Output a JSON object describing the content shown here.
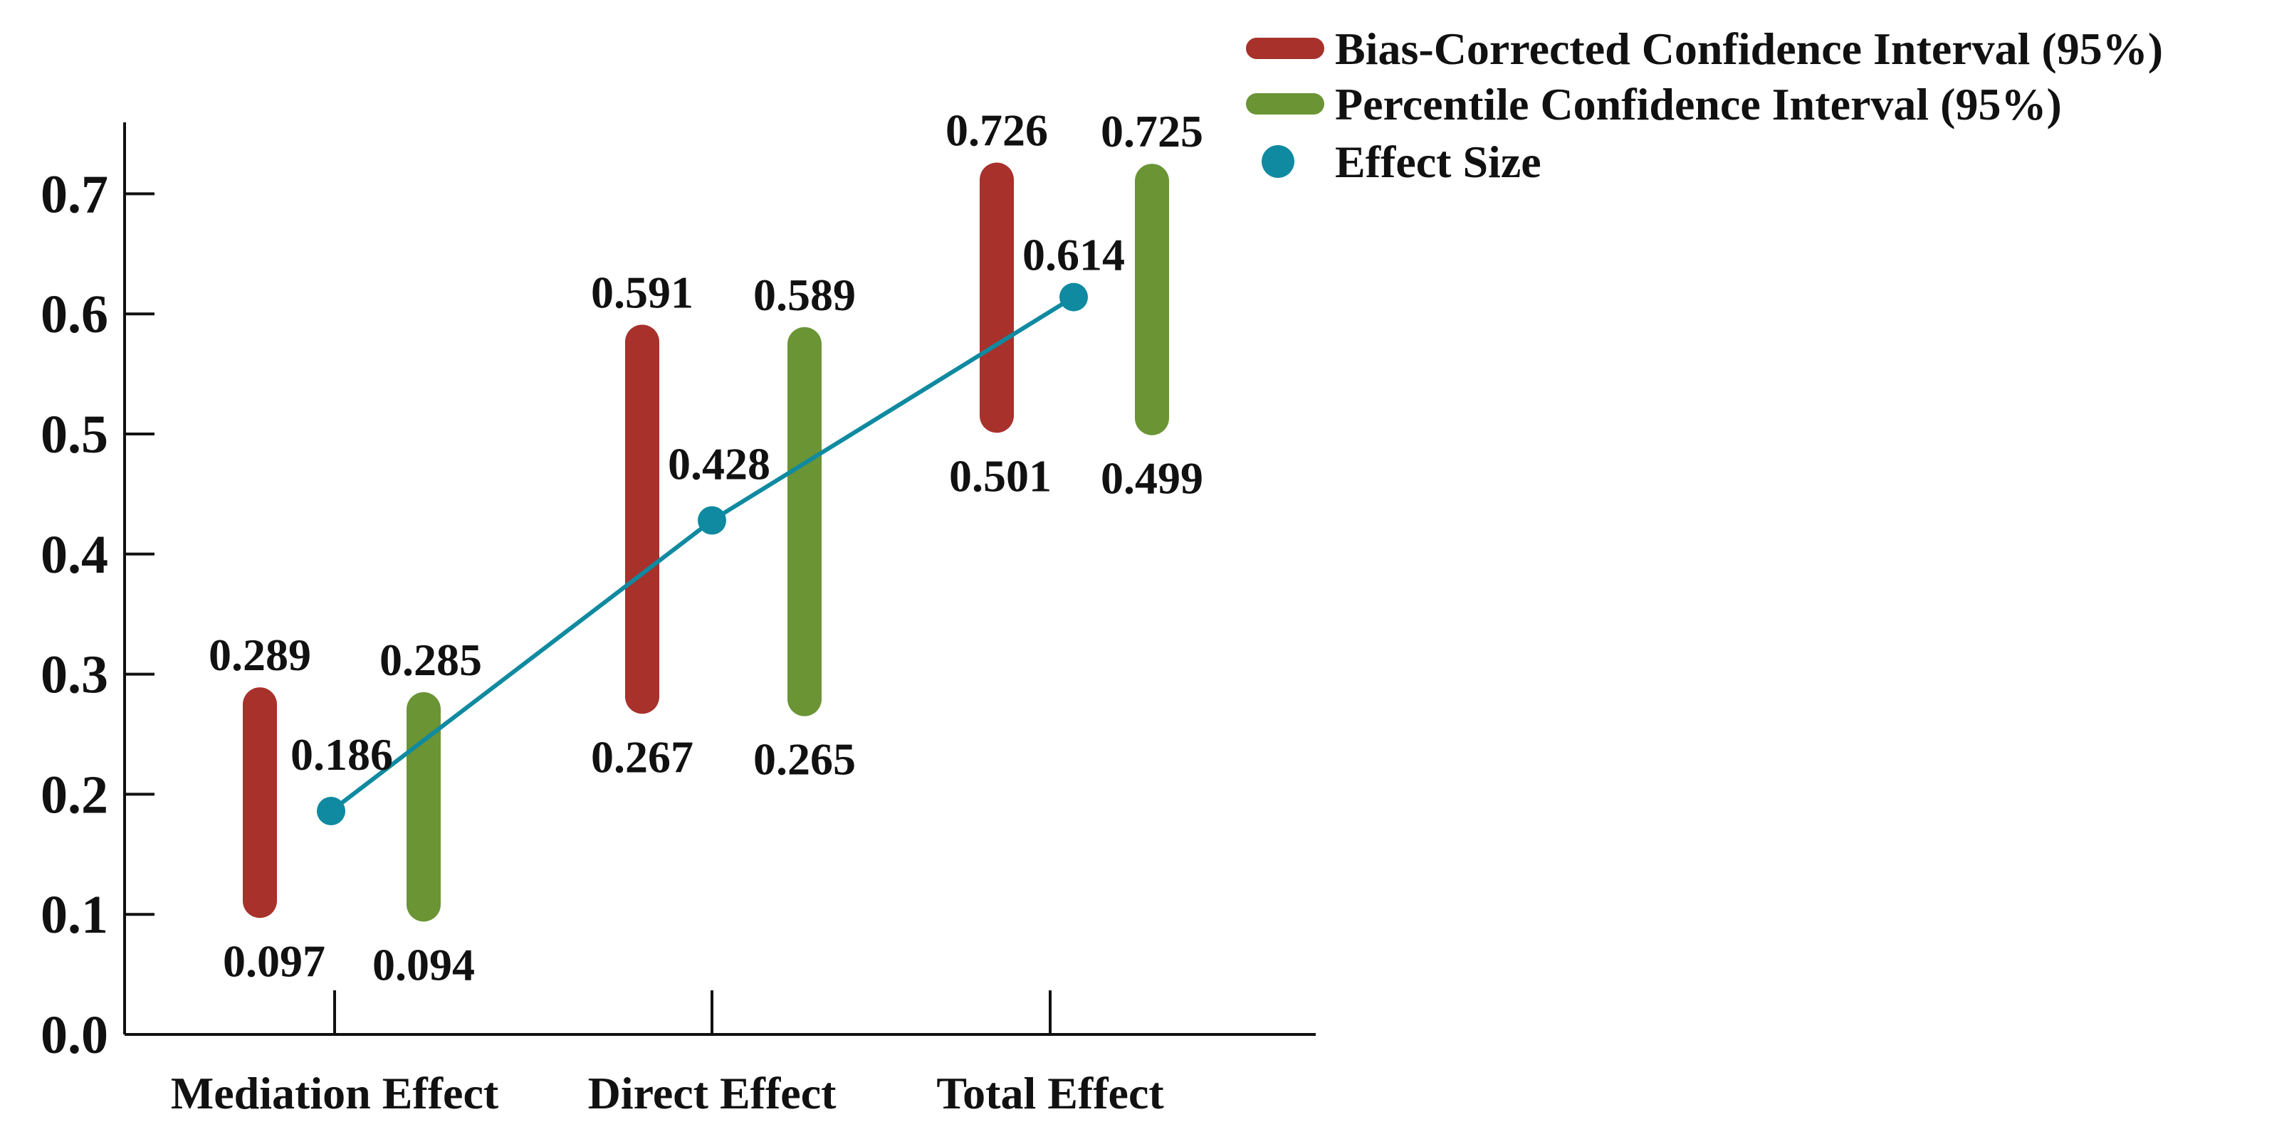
{
  "colors": {
    "bias_corrected": "#a8312c",
    "percentile": "#6b9435",
    "effect": "#0f8aa0",
    "axis": "#111111"
  },
  "legend": {
    "bias_corrected": "Bias-Corrected Confidence Interval (95%)",
    "percentile": "Percentile Confidence Interval (95%)",
    "effect": "Effect Size"
  },
  "chart_data": {
    "type": "interval",
    "title": "",
    "xlabel": "",
    "ylabel": "",
    "ylim": [
      0.0,
      0.76
    ],
    "yticks": [
      "0.0",
      "0.1",
      "0.2",
      "0.3",
      "0.4",
      "0.5",
      "0.6",
      "0.7"
    ],
    "categories": [
      "Mediation Effect",
      "Direct Effect",
      "Total Effect"
    ],
    "series": [
      {
        "name": "Bias-Corrected Confidence Interval (95%)",
        "key": "bias_corrected",
        "lower": [
          0.097,
          0.267,
          0.501
        ],
        "upper": [
          0.289,
          0.591,
          0.726
        ],
        "lower_labels": [
          "0.097",
          "0.267",
          "0.501"
        ],
        "upper_labels": [
          "0.289",
          "0.591",
          "0.726"
        ]
      },
      {
        "name": "Percentile Confidence Interval (95%)",
        "key": "percentile",
        "lower": [
          0.094,
          0.265,
          0.499
        ],
        "upper": [
          0.285,
          0.589,
          0.725
        ],
        "lower_labels": [
          "0.094",
          "0.265",
          "0.499"
        ],
        "upper_labels": [
          "0.285",
          "0.589",
          "0.725"
        ]
      },
      {
        "name": "Effect Size",
        "key": "effect",
        "values": [
          0.186,
          0.428,
          0.614
        ],
        "value_labels": [
          "0.186",
          "0.428",
          "0.614"
        ]
      }
    ],
    "legend_position": "top-right",
    "grid": false
  }
}
